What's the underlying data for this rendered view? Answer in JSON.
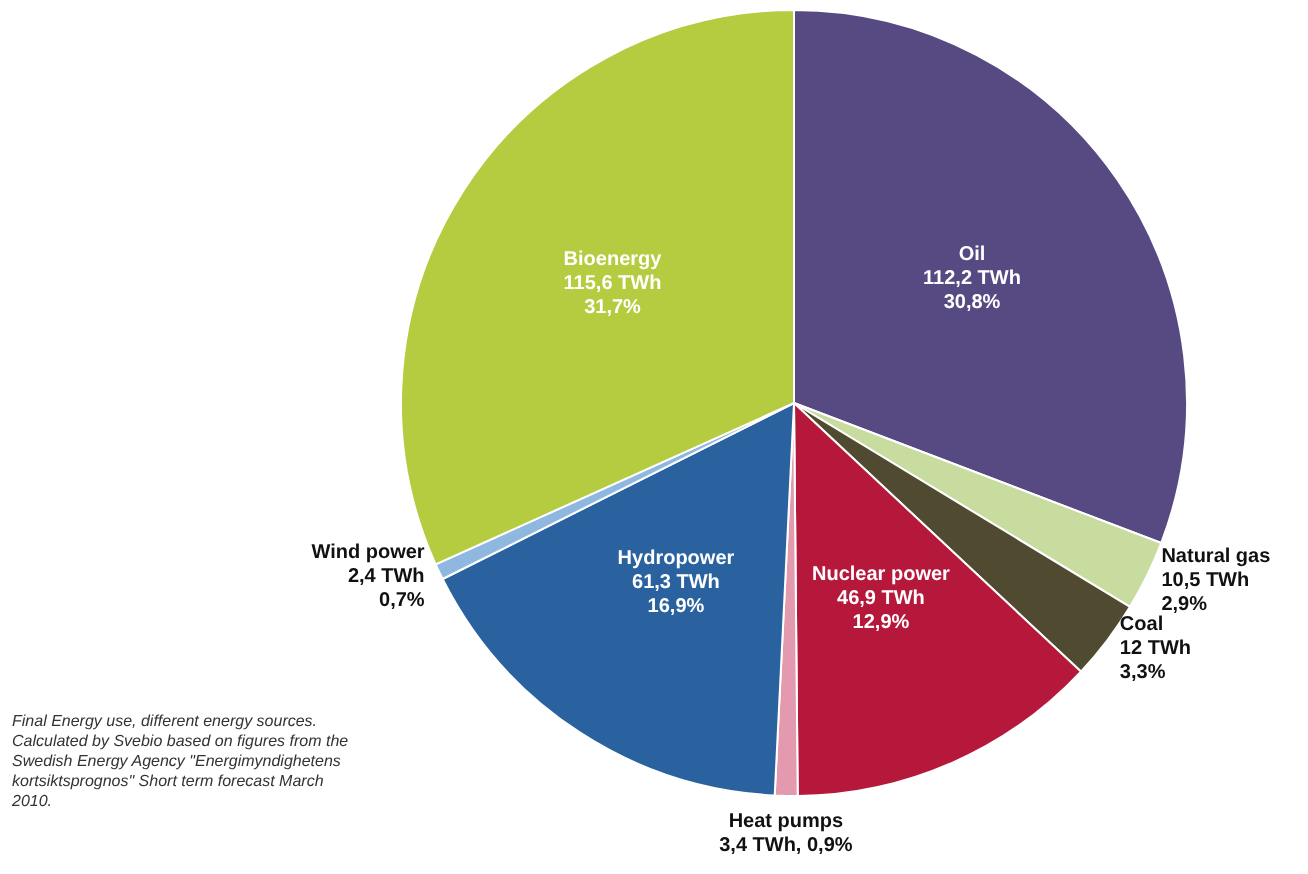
{
  "chart_data": {
    "type": "pie",
    "categories": [
      "Oil",
      "Natural gas",
      "Coal",
      "Nuclear power",
      "Heat pumps",
      "Hydropower",
      "Wind power",
      "Bioenergy"
    ],
    "values": [
      112.2,
      10.5,
      12,
      46.9,
      3.4,
      61.3,
      2.4,
      115.6
    ],
    "value_labels": [
      "112,2 TWh\n30,8%",
      "10,5 TWh\n2,9%",
      "12 TWh\n3,3%",
      "46,9 TWh\n12,9%",
      "3,4 TWh, 0,9%",
      "61,3 TWh\n16,9%",
      "2,4 TWh\n0,7%",
      "115,6 TWh\n31,7%"
    ],
    "colors": [
      "#574a82",
      "#c8dca0",
      "#4f4a30",
      "#b5183a",
      "#e39aae",
      "#2a62a0",
      "#8fb8e0",
      "#b5cc40"
    ],
    "legend": false,
    "annotations": [
      "Final Energy use, different energy sources. Calculated by Svebio based on figures from the Swedish Energy Agency \"Energimyndighetens kortsiktsprognos\" Short term forecast March 2010."
    ]
  }
}
